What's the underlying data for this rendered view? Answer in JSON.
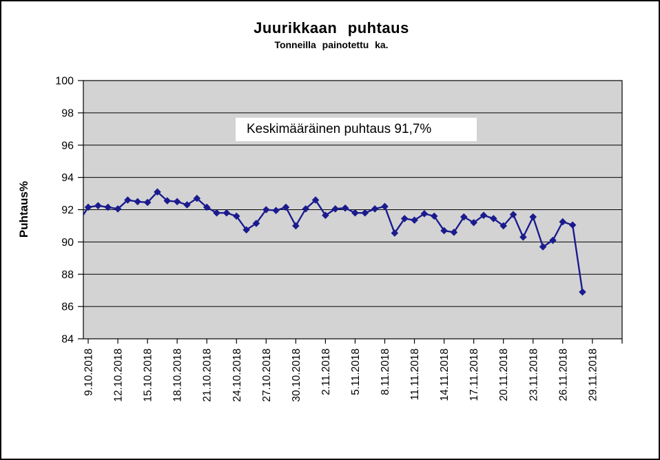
{
  "window": {
    "background": "#ffffff",
    "border_color": "#000000"
  },
  "chart_data": {
    "type": "line",
    "title": "Juurikkaan puhtaus",
    "subtitle": "Tonneilla painotettu ka.",
    "ylabel": "Puhtaus%",
    "xlabel": "",
    "ylim": [
      84,
      100
    ],
    "yticks": [
      100,
      98,
      96,
      94,
      92,
      90,
      88,
      86,
      84
    ],
    "grid": "horizontal",
    "legend": "none",
    "annotation": "Keskimääräinen puhtaus 91,7%",
    "x_tick_labels": [
      "9.10.2018",
      "12.10.2018",
      "15.10.2018",
      "18.10.2018",
      "21.10.2018",
      "24.10.2018",
      "27.10.2018",
      "30.10.2018",
      "2.11.2018",
      "5.11.2018",
      "8.11.2018",
      "11.11.2018",
      "14.11.2018",
      "17.11.2018",
      "20.11.2018",
      "23.11.2018",
      "26.11.2018",
      "29.11.2018"
    ],
    "x_tick_interval_days": 3,
    "series": [
      {
        "name": "Juurikkaan puhtaus",
        "marker": "diamond",
        "first_point_clipped_at_axis": true,
        "dates": [
          "8.10.2018",
          "9.10.2018",
          "10.10.2018",
          "11.10.2018",
          "12.10.2018",
          "13.10.2018",
          "14.10.2018",
          "15.10.2018",
          "16.10.2018",
          "17.10.2018",
          "18.10.2018",
          "19.10.2018",
          "20.10.2018",
          "21.10.2018",
          "22.10.2018",
          "23.10.2018",
          "24.10.2018",
          "25.10.2018",
          "26.10.2018",
          "27.10.2018",
          "28.10.2018",
          "29.10.2018",
          "30.10.2018",
          "31.10.2018",
          "1.11.2018",
          "2.11.2018",
          "3.11.2018",
          "4.11.2018",
          "5.11.2018",
          "6.11.2018",
          "7.11.2018",
          "8.11.2018",
          "9.11.2018",
          "10.11.2018",
          "11.11.2018",
          "12.11.2018",
          "13.11.2018",
          "14.11.2018",
          "15.11.2018",
          "16.11.2018",
          "17.11.2018",
          "18.11.2018",
          "19.11.2018",
          "20.11.2018",
          "21.11.2018",
          "22.11.2018",
          "23.11.2018",
          "24.11.2018",
          "25.11.2018",
          "26.11.2018",
          "27.11.2018",
          "28.11.2018"
        ],
        "values": [
          91.2,
          92.15,
          92.25,
          92.15,
          92.05,
          92.6,
          92.5,
          92.45,
          93.1,
          92.55,
          92.5,
          92.3,
          92.7,
          92.15,
          91.8,
          91.8,
          91.6,
          90.75,
          91.15,
          92.0,
          91.95,
          92.15,
          91.0,
          92.05,
          92.6,
          91.65,
          92.05,
          92.1,
          91.8,
          91.8,
          92.05,
          92.2,
          90.55,
          91.45,
          91.35,
          91.75,
          91.6,
          90.7,
          90.6,
          91.55,
          91.2,
          91.65,
          91.45,
          91.0,
          91.7,
          90.3,
          91.55,
          89.7,
          90.1,
          91.25,
          91.05,
          86.9
        ]
      }
    ],
    "colors": {
      "line": "#1b1b8e",
      "plot_background": "#d3d3d3",
      "gridline": "#000000",
      "axis": "#000000",
      "annotation_background": "#ffffff",
      "text": "#000000"
    }
  }
}
